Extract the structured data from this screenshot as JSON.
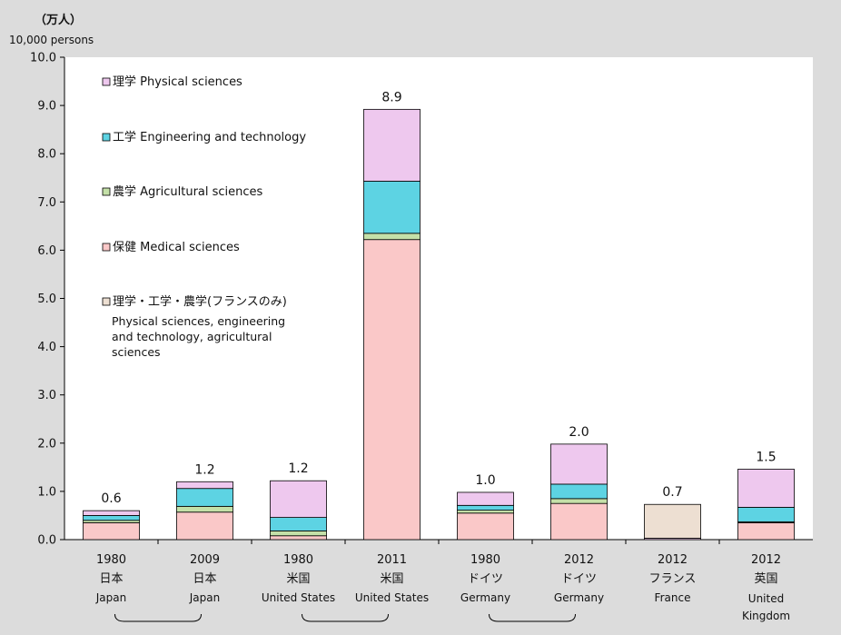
{
  "unit": {
    "jp": "（万人）",
    "en": "10,000 persons"
  },
  "chart_data": {
    "type": "bar",
    "stacked": true,
    "ylim": [
      0,
      10
    ],
    "yticks": [
      "0.0",
      "1.0",
      "2.0",
      "3.0",
      "4.0",
      "5.0",
      "6.0",
      "7.0",
      "8.0",
      "9.0",
      "10.0"
    ],
    "grid": false,
    "legend_placement": "top-left inside plot",
    "categories": [
      {
        "year": "1980",
        "country_jp": "日本",
        "country_en": "Japan"
      },
      {
        "year": "2009",
        "country_jp": "日本",
        "country_en": "Japan"
      },
      {
        "year": "1980",
        "country_jp": "米国",
        "country_en": "United States"
      },
      {
        "year": "2011",
        "country_jp": "米国",
        "country_en": "United States"
      },
      {
        "year": "1980",
        "country_jp": "ドイツ",
        "country_en": "Germany"
      },
      {
        "year": "2012",
        "country_jp": "ドイツ",
        "country_en": "Germany"
      },
      {
        "year": "2012",
        "country_jp": "フランス",
        "country_en": "France"
      },
      {
        "year": "2012",
        "country_jp": "英国",
        "country_en": "United Kingdom"
      }
    ],
    "series": [
      {
        "name": "保健 Medical sciences",
        "color": "#fac8c8",
        "values": [
          0.35,
          0.57,
          0.08,
          6.22,
          0.55,
          0.75,
          0,
          0.35
        ]
      },
      {
        "name": "農学 Agricultural sciences",
        "color": "#c4e0a8",
        "values": [
          0.05,
          0.12,
          0.1,
          0.13,
          0.06,
          0.1,
          0,
          0.02
        ]
      },
      {
        "name": "工学 Engineering and technology",
        "color": "#5dd3e3",
        "values": [
          0.1,
          0.37,
          0.28,
          1.08,
          0.1,
          0.3,
          0,
          0.3
        ]
      },
      {
        "name": "理学 Physical sciences",
        "color": "#eec8ee",
        "values": [
          0.1,
          0.14,
          0.76,
          1.49,
          0.27,
          0.83,
          0.03,
          0.79
        ]
      },
      {
        "name": "理学・工学・農学(フランスのみ) Physical sciences, engineering and technology, agricultural sciences",
        "color": "#eddfd2",
        "values": [
          0,
          0,
          0,
          0,
          0,
          0,
          0.7,
          0
        ]
      }
    ],
    "totals": [
      "0.6",
      "1.2",
      "1.2",
      "8.9",
      "1.0",
      "2.0",
      "0.7",
      "1.5"
    ],
    "legend": [
      {
        "text": "理学 Physical sciences",
        "color": "#eec8ee"
      },
      {
        "text": "工学 Engineering and technology",
        "color": "#5dd3e3"
      },
      {
        "text": "農学 Agricultural sciences",
        "color": "#c4e0a8"
      },
      {
        "text": "保健 Medical sciences",
        "color": "#fac8c8"
      },
      {
        "text": "理学・工学・農学(フランスのみ)",
        "color": "#eddfd2",
        "extra": [
          "Physical sciences, engineering",
          "and technology, agricultural",
          "sciences"
        ]
      }
    ]
  }
}
